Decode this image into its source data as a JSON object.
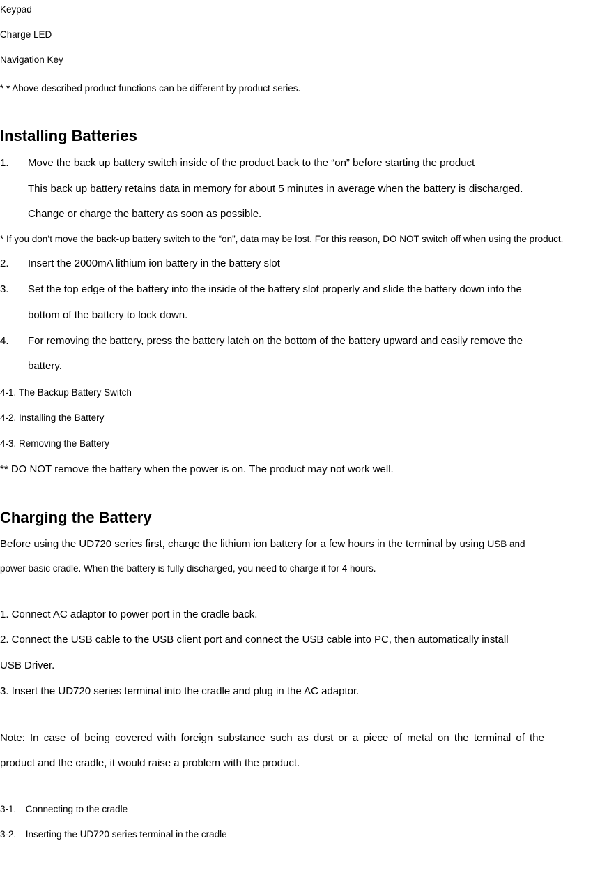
{
  "top_labels": {
    "keypad": "Keypad",
    "charge_led": "Charge LED",
    "nav_key": "Navigation Key"
  },
  "top_note": "* * Above described product functions can be different by product series.",
  "sec1": {
    "title": "Installing Batteries",
    "s1_num": "1.",
    "s1_a": "Move the back up battery switch inside of the product back to the “on” before starting the product",
    "s1_b": "This back up battery retains data in memory for about 5 minutes in average when the battery is discharged.",
    "s1_c": "Change or charge the battery as soon as possible.",
    "s1_note": "* If you don’t move the back-up battery switch to the “on”, data may be lost. For this reason, DO NOT switch off when using the product.",
    "s2_num": "2.",
    "s2": "Insert the 2000mA lithium ion battery in the battery slot",
    "s3_num": "3.",
    "s3_a": "Set the top edge of the battery into the inside of the battery slot properly and slide the battery down into the",
    "s3_b": "bottom of the battery to lock down.",
    "s4_num": "4.",
    "s4_a": "For removing the battery, press the battery latch on the bottom of the battery upward and easily remove the",
    "s4_b": "battery.",
    "sub41": "4-1. The Backup Battery Switch",
    "sub42": "4-2. Installing the Battery",
    "sub43": "4-3. Removing the Battery",
    "warn": "** DO NOT remove the battery when the power is on. The product may not work well."
  },
  "sec2": {
    "title": "Charging the Battery",
    "intro_a_body": "Before using the UD720 series first, charge the lithium ion battery for a few hours in the terminal by using ",
    "intro_a_tail": "USB and",
    "intro_b": "power basic cradle. When the battery is fully discharged, you need to charge it for 4 hours.",
    "p1": "1. Connect AC adaptor to power port in the cradle back.",
    "p2": "2. Connect the USB cable to the USB client port and connect the USB cable into PC, then automatically install",
    "p2b": "USB Driver.",
    "p3": "3. Insert the UD720 series terminal into the cradle and plug in the AC adaptor.",
    "note_a": "Note: In case of being covered with foreign substance such as dust or a piece of metal on the terminal of the",
    "note_b": "product and the cradle, it would raise a problem with the product.",
    "sub31": "3-1. Connecting to the cradle",
    "sub32": "3-2. Inserting the UD720 series terminal in the cradle"
  }
}
